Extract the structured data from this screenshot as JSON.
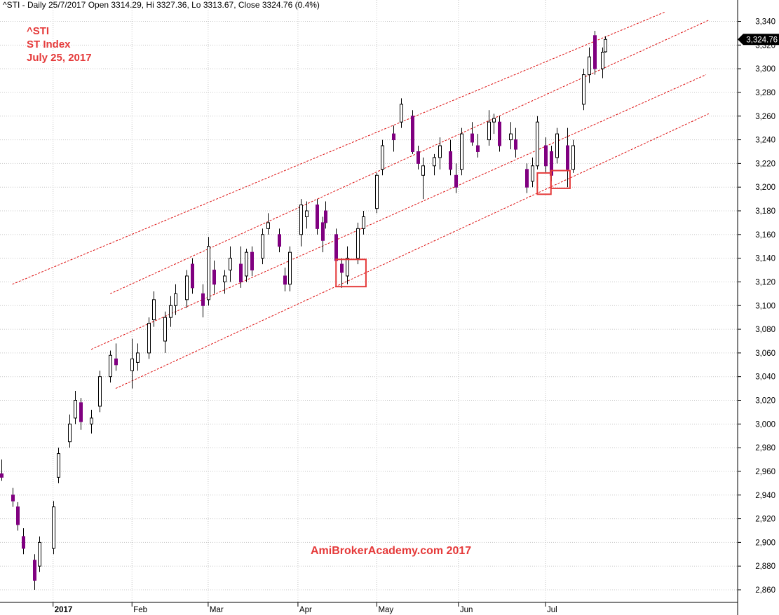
{
  "header": {
    "status_line": "^STI - Daily 25/7/2017 Open 3314.29, Hi 3327.36, Lo 3313.67, Close 3324.76 (0.4%)"
  },
  "stamp": {
    "symbol": "^STI",
    "name": "ST Index",
    "date": "July 25, 2017"
  },
  "watermark": "AmiBrokerAcademy.com  2017",
  "colors": {
    "bull_fill": "#ffffff",
    "bull_stroke": "#000000",
    "bear_fill": "#800080",
    "channel": "#dd1111",
    "highlight_box": "#e53a3a",
    "grid": "#c8c8c8"
  },
  "chart_data": {
    "type": "candlestick",
    "title": "ST Index",
    "y_axis": {
      "side": "right",
      "ylim": [
        2845,
        3352
      ],
      "ticks": [
        2860,
        2880,
        2900,
        2920,
        2940,
        2960,
        2980,
        3000,
        3020,
        3040,
        3060,
        3080,
        3100,
        3120,
        3140,
        3160,
        3180,
        3200,
        3220,
        3240,
        3260,
        3280,
        3300,
        3320,
        3340
      ],
      "tick_labels": [
        "2,860",
        "2,880",
        "2,900",
        "2,920",
        "2,940",
        "2,960",
        "2,980",
        "3,000",
        "3,020",
        "3,040",
        "3,060",
        "3,080",
        "3,100",
        "3,120",
        "3,140",
        "3,160",
        "3,180",
        "3,200",
        "3,220",
        "3,240",
        "3,260",
        "3,280",
        "3,300",
        "3,320",
        "3,340"
      ],
      "last_price_label": "3,324.76",
      "grid": true
    },
    "x_axis": {
      "start_date": "2016-12-15",
      "months": [
        {
          "label": "2017",
          "date": "2017-01-03",
          "bold": true
        },
        {
          "label": "Feb",
          "date": "2017-02-01",
          "bold": false
        },
        {
          "label": "Mar",
          "date": "2017-03-01",
          "bold": false
        },
        {
          "label": "Apr",
          "date": "2017-04-03",
          "bold": false
        },
        {
          "label": "May",
          "date": "2017-05-02",
          "bold": false
        },
        {
          "label": "Jun",
          "date": "2017-06-01",
          "bold": false
        },
        {
          "label": "Jul",
          "date": "2017-07-03",
          "bold": false
        }
      ],
      "grid": true
    },
    "anchors": [
      {
        "date": "2016-12-15",
        "open": 2958,
        "high": 2970,
        "low": 2952,
        "close": 2955
      },
      {
        "date": "2016-12-19",
        "open": 2940,
        "high": 2946,
        "low": 2930,
        "close": 2935
      },
      {
        "date": "2016-12-21",
        "open": 2930,
        "high": 2934,
        "low": 2910,
        "close": 2915
      },
      {
        "date": "2016-12-23",
        "open": 2905,
        "high": 2912,
        "low": 2890,
        "close": 2895
      },
      {
        "date": "2016-12-27",
        "open": 2885,
        "high": 2890,
        "low": 2860,
        "close": 2868
      },
      {
        "date": "2016-12-29",
        "open": 2880,
        "high": 2905,
        "low": 2875,
        "close": 2900
      },
      {
        "date": "2017-01-03",
        "open": 2895,
        "high": 2935,
        "low": 2890,
        "close": 2930
      },
      {
        "date": "2017-01-05",
        "open": 2955,
        "high": 2980,
        "low": 2950,
        "close": 2975
      },
      {
        "date": "2017-01-09",
        "open": 2985,
        "high": 3008,
        "low": 2980,
        "close": 3000
      },
      {
        "date": "2017-01-11",
        "open": 3005,
        "high": 3028,
        "low": 3000,
        "close": 3020
      },
      {
        "date": "2017-01-13",
        "open": 3018,
        "high": 3022,
        "low": 2995,
        "close": 3002
      },
      {
        "date": "2017-01-17",
        "open": 3000,
        "high": 3012,
        "low": 2992,
        "close": 3005
      },
      {
        "date": "2017-01-20",
        "open": 3015,
        "high": 3045,
        "low": 3010,
        "close": 3040
      },
      {
        "date": "2017-01-24",
        "open": 3040,
        "high": 3062,
        "low": 3035,
        "close": 3058
      },
      {
        "date": "2017-01-26",
        "open": 3055,
        "high": 3068,
        "low": 3045,
        "close": 3050
      },
      {
        "date": "2017-02-01",
        "open": 3045,
        "high": 3072,
        "low": 3030,
        "close": 3055
      },
      {
        "date": "2017-02-03",
        "open": 3052,
        "high": 3068,
        "low": 3045,
        "close": 3060
      },
      {
        "date": "2017-02-07",
        "open": 3060,
        "high": 3090,
        "low": 3055,
        "close": 3085
      },
      {
        "date": "2017-02-09",
        "open": 3088,
        "high": 3112,
        "low": 3082,
        "close": 3105
      },
      {
        "date": "2017-02-13",
        "open": 3070,
        "high": 3095,
        "low": 3060,
        "close": 3090
      },
      {
        "date": "2017-02-15",
        "open": 3090,
        "high": 3108,
        "low": 3082,
        "close": 3100
      },
      {
        "date": "2017-02-17",
        "open": 3100,
        "high": 3118,
        "low": 3092,
        "close": 3110
      },
      {
        "date": "2017-02-21",
        "open": 3105,
        "high": 3130,
        "low": 3098,
        "close": 3125
      },
      {
        "date": "2017-02-23",
        "open": 3135,
        "high": 3140,
        "low": 3110,
        "close": 3115
      },
      {
        "date": "2017-02-27",
        "open": 3110,
        "high": 3118,
        "low": 3090,
        "close": 3100
      },
      {
        "date": "2017-03-01",
        "open": 3105,
        "high": 3158,
        "low": 3100,
        "close": 3150
      },
      {
        "date": "2017-03-03",
        "open": 3130,
        "high": 3138,
        "low": 3110,
        "close": 3118
      },
      {
        "date": "2017-03-07",
        "open": 3120,
        "high": 3130,
        "low": 3110,
        "close": 3125
      },
      {
        "date": "2017-03-09",
        "open": 3130,
        "high": 3150,
        "low": 3120,
        "close": 3140
      },
      {
        "date": "2017-03-13",
        "open": 3135,
        "high": 3150,
        "low": 3115,
        "close": 3120
      },
      {
        "date": "2017-03-15",
        "open": 3125,
        "high": 3148,
        "low": 3120,
        "close": 3145
      },
      {
        "date": "2017-03-17",
        "open": 3145,
        "high": 3150,
        "low": 3125,
        "close": 3130
      },
      {
        "date": "2017-03-21",
        "open": 3140,
        "high": 3165,
        "low": 3135,
        "close": 3160
      },
      {
        "date": "2017-03-23",
        "open": 3165,
        "high": 3178,
        "low": 3160,
        "close": 3170
      },
      {
        "date": "2017-03-27",
        "open": 3160,
        "high": 3165,
        "low": 3145,
        "close": 3150
      },
      {
        "date": "2017-03-29",
        "open": 3125,
        "high": 3132,
        "low": 3112,
        "close": 3118
      },
      {
        "date": "2017-03-31",
        "open": 3118,
        "high": 3150,
        "low": 3112,
        "close": 3145
      },
      {
        "date": "2017-04-04",
        "open": 3160,
        "high": 3190,
        "low": 3150,
        "close": 3185
      },
      {
        "date": "2017-04-06",
        "open": 3175,
        "high": 3188,
        "low": 3165,
        "close": 3180
      },
      {
        "date": "2017-04-10",
        "open": 3185,
        "high": 3190,
        "low": 3160,
        "close": 3165
      },
      {
        "date": "2017-04-12",
        "open": 3170,
        "high": 3175,
        "low": 3145,
        "close": 3155
      },
      {
        "date": "2017-04-13",
        "open": 3180,
        "high": 3188,
        "low": 3165,
        "close": 3170
      },
      {
        "date": "2017-04-17",
        "open": 3160,
        "high": 3165,
        "low": 3132,
        "close": 3138
      },
      {
        "date": "2017-04-19",
        "open": 3135,
        "high": 3140,
        "low": 3115,
        "close": 3128
      },
      {
        "date": "2017-04-21",
        "open": 3125,
        "high": 3150,
        "low": 3118,
        "close": 3140
      },
      {
        "date": "2017-04-25",
        "open": 3140,
        "high": 3170,
        "low": 3135,
        "close": 3165
      },
      {
        "date": "2017-04-27",
        "open": 3165,
        "high": 3180,
        "low": 3160,
        "close": 3175
      },
      {
        "date": "2017-05-02",
        "open": 3182,
        "high": 3212,
        "low": 3178,
        "close": 3210
      },
      {
        "date": "2017-05-04",
        "open": 3215,
        "high": 3240,
        "low": 3210,
        "close": 3235
      },
      {
        "date": "2017-05-08",
        "open": 3245,
        "high": 3252,
        "low": 3230,
        "close": 3240
      },
      {
        "date": "2017-05-11",
        "open": 3255,
        "high": 3275,
        "low": 3250,
        "close": 3270
      },
      {
        "date": "2017-05-15",
        "open": 3260,
        "high": 3265,
        "low": 3228,
        "close": 3230
      },
      {
        "date": "2017-05-17",
        "open": 3230,
        "high": 3235,
        "low": 3215,
        "close": 3220
      },
      {
        "date": "2017-05-19",
        "open": 3210,
        "high": 3225,
        "low": 3190,
        "close": 3218
      },
      {
        "date": "2017-05-23",
        "open": 3218,
        "high": 3228,
        "low": 3210,
        "close": 3225
      },
      {
        "date": "2017-05-25",
        "open": 3225,
        "high": 3242,
        "low": 3215,
        "close": 3235
      },
      {
        "date": "2017-05-29",
        "open": 3230,
        "high": 3240,
        "low": 3210,
        "close": 3215
      },
      {
        "date": "2017-05-31",
        "open": 3210,
        "high": 3220,
        "low": 3195,
        "close": 3200
      },
      {
        "date": "2017-06-02",
        "open": 3215,
        "high": 3250,
        "low": 3210,
        "close": 3245
      },
      {
        "date": "2017-06-06",
        "open": 3245,
        "high": 3255,
        "low": 3235,
        "close": 3238
      },
      {
        "date": "2017-06-08",
        "open": 3235,
        "high": 3245,
        "low": 3225,
        "close": 3230
      },
      {
        "date": "2017-06-12",
        "open": 3240,
        "high": 3265,
        "low": 3235,
        "close": 3255
      },
      {
        "date": "2017-06-14",
        "open": 3255,
        "high": 3262,
        "low": 3245,
        "close": 3258
      },
      {
        "date": "2017-06-16",
        "open": 3255,
        "high": 3260,
        "low": 3230,
        "close": 3235
      },
      {
        "date": "2017-06-20",
        "open": 3240,
        "high": 3255,
        "low": 3232,
        "close": 3245
      },
      {
        "date": "2017-06-22",
        "open": 3240,
        "high": 3250,
        "low": 3225,
        "close": 3232
      },
      {
        "date": "2017-06-26",
        "open": 3215,
        "high": 3220,
        "low": 3195,
        "close": 3200
      },
      {
        "date": "2017-06-28",
        "open": 3205,
        "high": 3225,
        "low": 3200,
        "close": 3218
      },
      {
        "date": "2017-06-30",
        "open": 3218,
        "high": 3260,
        "low": 3215,
        "close": 3255
      },
      {
        "date": "2017-07-03",
        "open": 3235,
        "high": 3242,
        "low": 3212,
        "close": 3218
      },
      {
        "date": "2017-07-05",
        "open": 3230,
        "high": 3235,
        "low": 3205,
        "close": 3210
      },
      {
        "date": "2017-07-07",
        "open": 3225,
        "high": 3250,
        "low": 3220,
        "close": 3245
      },
      {
        "date": "2017-07-11",
        "open": 3235,
        "high": 3250,
        "low": 3200,
        "close": 3215
      },
      {
        "date": "2017-07-13",
        "open": 3215,
        "high": 3240,
        "low": 3212,
        "close": 3235
      },
      {
        "date": "2017-07-17",
        "open": 3270,
        "high": 3300,
        "low": 3265,
        "close": 3295
      },
      {
        "date": "2017-07-19",
        "open": 3295,
        "high": 3318,
        "low": 3288,
        "close": 3310
      },
      {
        "date": "2017-07-21",
        "open": 3328,
        "high": 3332,
        "low": 3295,
        "close": 3300
      },
      {
        "date": "2017-07-24",
        "open": 3300,
        "high": 3318,
        "low": 3292,
        "close": 3314
      },
      {
        "date": "2017-07-25",
        "open": 3314.29,
        "high": 3327.36,
        "low": 3313.67,
        "close": 3324.76
      }
    ],
    "channel_lines": [
      {
        "from": {
          "date": "2016-12-19",
          "value": 3118
        },
        "to": {
          "date": "2017-08-16",
          "value": 3348
        }
      },
      {
        "from": {
          "date": "2017-01-24",
          "value": 3110
        },
        "to": {
          "date": "2017-09-01",
          "value": 3341
        }
      },
      {
        "from": {
          "date": "2017-01-17",
          "value": 3063
        },
        "to": {
          "date": "2017-08-31",
          "value": 3295
        }
      },
      {
        "from": {
          "date": "2017-01-26",
          "value": 3030
        },
        "to": {
          "date": "2017-09-01",
          "value": 3262
        }
      }
    ],
    "highlight_boxes": [
      {
        "from_date": "2017-04-17",
        "to_date": "2017-04-28",
        "low": 3116,
        "high": 3139
      },
      {
        "from_date": "2017-06-30",
        "to_date": "2017-07-05",
        "low": 3194,
        "high": 3212
      },
      {
        "from_date": "2017-07-05",
        "to_date": "2017-07-12",
        "low": 3199,
        "high": 3214
      }
    ]
  }
}
